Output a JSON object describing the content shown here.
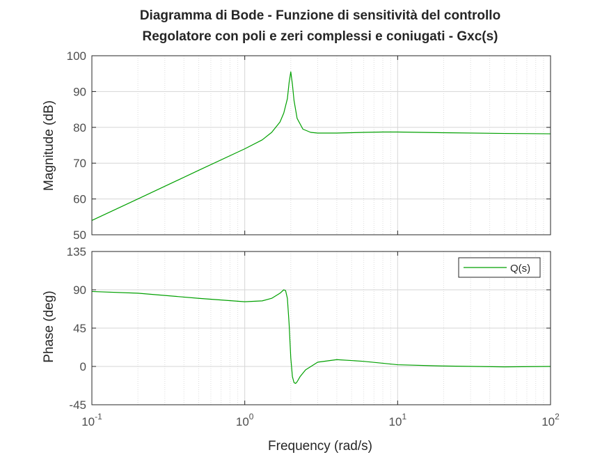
{
  "chart_data": {
    "type": "line",
    "title": [
      "Diagramma di Bode - Funzione di sensitività del controllo",
      "Regolatore con poli e zeri complessi e coniugati - Gxc(s)"
    ],
    "x_scale": "log",
    "xlabel": "Frequency  (rad/s)",
    "xlim": [
      0.1,
      100
    ],
    "x_ticks": [
      {
        "base": "10",
        "exp": "-1"
      },
      {
        "base": "10",
        "exp": "0"
      },
      {
        "base": "10",
        "exp": "1"
      },
      {
        "base": "10",
        "exp": "2"
      }
    ],
    "grid": true,
    "color": "#00a000",
    "magnitude": {
      "ylabel": "Magnitude (dB)",
      "ylim": [
        50,
        100
      ],
      "yticks": [
        "50",
        "60",
        "70",
        "80",
        "90",
        "100"
      ],
      "x": [
        0.1,
        0.2,
        0.5,
        1.0,
        1.3,
        1.5,
        1.7,
        1.8,
        1.9,
        1.95,
        2.0,
        2.05,
        2.1,
        2.2,
        2.4,
        2.7,
        3.0,
        4,
        6,
        8,
        10,
        20,
        50,
        100
      ],
      "y": [
        54.0,
        60.0,
        68.0,
        74.0,
        76.5,
        78.6,
        81.5,
        84.0,
        88.0,
        92.5,
        95.5,
        92.0,
        87.5,
        82.5,
        79.5,
        78.6,
        78.4,
        78.4,
        78.6,
        78.7,
        78.7,
        78.5,
        78.3,
        78.2
      ]
    },
    "phase": {
      "ylabel": "Phase (deg)",
      "ylim": [
        -45,
        135
      ],
      "yticks": [
        "-45",
        "0",
        "45",
        "90",
        "135"
      ],
      "x": [
        0.1,
        0.2,
        0.5,
        1.0,
        1.3,
        1.5,
        1.7,
        1.8,
        1.85,
        1.9,
        1.95,
        2.0,
        2.05,
        2.1,
        2.15,
        2.2,
        2.3,
        2.5,
        3.0,
        4,
        6,
        10,
        20,
        50,
        100
      ],
      "y": [
        88,
        86,
        80,
        76,
        77,
        80,
        86,
        90,
        89,
        80,
        50,
        10,
        -12,
        -19,
        -20,
        -18,
        -12,
        -4,
        5,
        8,
        6,
        2,
        0.5,
        -0.5,
        0
      ],
      "legend": "Q(s)",
      "legend_position": "top-right"
    }
  }
}
